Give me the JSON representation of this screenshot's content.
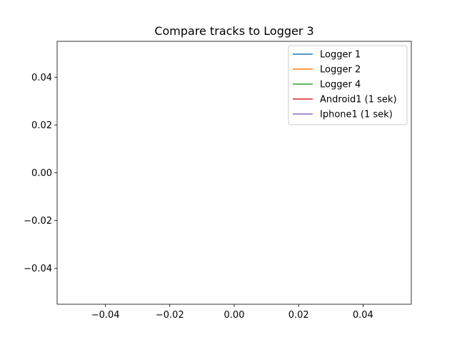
{
  "chart_data": {
    "type": "line",
    "title": "Compare tracks to Logger 3",
    "xlabel": "",
    "ylabel": "",
    "xlim": [
      -0.055,
      0.055
    ],
    "ylim": [
      -0.055,
      0.055
    ],
    "grid": false,
    "legend_placement": "top-right",
    "x_ticks": [
      -0.04,
      -0.02,
      0.0,
      0.02,
      0.04
    ],
    "x_tick_labels": [
      "−0.04",
      "−0.02",
      "0.00",
      "0.02",
      "0.04"
    ],
    "y_ticks": [
      0.04,
      0.02,
      0.0,
      -0.02,
      -0.04
    ],
    "y_tick_labels": [
      "0.04",
      "0.02",
      "0.00",
      "−0.02",
      "−0.04"
    ],
    "series": [
      {
        "name": "Logger 1",
        "color": "#1f77b4",
        "x": [],
        "y": []
      },
      {
        "name": "Logger 2",
        "color": "#ff7f0e",
        "x": [],
        "y": []
      },
      {
        "name": "Logger 4",
        "color": "#2ca02c",
        "x": [],
        "y": []
      },
      {
        "name": "Android1 (1 sek)",
        "color": "#d62728",
        "x": [],
        "y": []
      },
      {
        "name": "Iphone1 (1 sek)",
        "color": "#9467bd",
        "x": [],
        "y": []
      }
    ]
  }
}
